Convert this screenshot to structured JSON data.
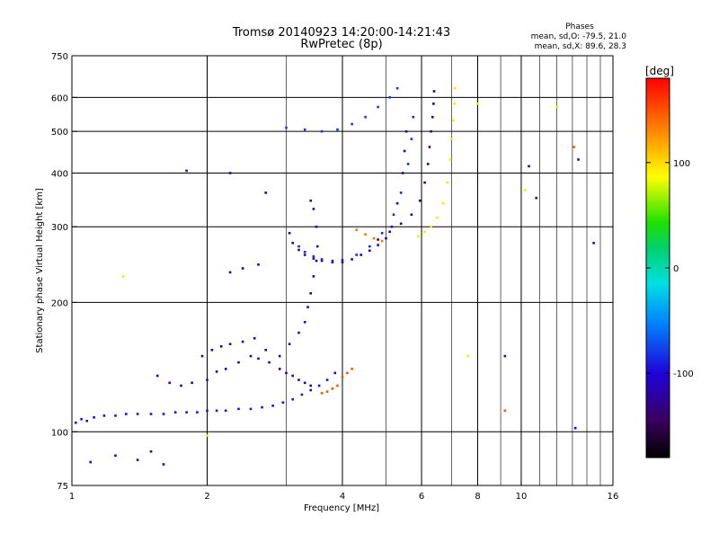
{
  "chart_data": {
    "type": "scatter",
    "title_line1": "Tromsø 20140923 14:20:00-14:21:43",
    "title_line2": "RwPretec (8p)",
    "stats_heading": "Phases",
    "stats_o": "mean, sd,O: -79.5, 21.0",
    "stats_x": "mean, sd,X:  89.6, 28.3",
    "xlabel": "Frequency [MHz]",
    "ylabel": "Stationary phase Virtual Height [km]",
    "x_scale": "log",
    "y_scale": "log",
    "xlim": [
      1,
      16
    ],
    "ylim": [
      75,
      750
    ],
    "x_ticks": [
      1,
      2,
      4,
      6,
      8,
      10,
      16
    ],
    "y_ticks": [
      75,
      100,
      200,
      300,
      400,
      500,
      600,
      750
    ],
    "grid": true,
    "colorbar": {
      "label": "[deg]",
      "range": [
        -180,
        180
      ],
      "ticks": [
        100,
        0,
        -100
      ]
    },
    "series": [
      {
        "phase": -95,
        "points": [
          [
            1.02,
            105
          ],
          [
            1.05,
            107
          ],
          [
            1.08,
            106
          ],
          [
            1.12,
            108
          ],
          [
            1.18,
            109
          ],
          [
            1.25,
            109
          ],
          [
            1.32,
            110
          ],
          [
            1.4,
            110
          ],
          [
            1.5,
            110
          ],
          [
            1.6,
            110
          ],
          [
            1.7,
            111
          ],
          [
            1.8,
            111
          ],
          [
            1.9,
            111
          ],
          [
            2.0,
            112
          ],
          [
            2.1,
            112
          ],
          [
            2.2,
            112
          ],
          [
            2.35,
            113
          ],
          [
            2.5,
            113
          ],
          [
            2.65,
            114
          ],
          [
            2.8,
            115
          ],
          [
            2.95,
            117
          ],
          [
            3.1,
            119
          ],
          [
            3.25,
            122
          ],
          [
            3.4,
            125
          ],
          [
            3.55,
            128
          ],
          [
            3.7,
            132
          ],
          [
            3.85,
            137
          ]
        ]
      },
      {
        "phase": -120,
        "points": [
          [
            1.55,
            135
          ],
          [
            1.65,
            130
          ],
          [
            1.75,
            128
          ],
          [
            1.85,
            130
          ],
          [
            2.0,
            132
          ],
          [
            2.1,
            138
          ],
          [
            2.2,
            140
          ],
          [
            2.35,
            145
          ],
          [
            2.5,
            150
          ],
          [
            2.6,
            148
          ],
          [
            2.75,
            145
          ],
          [
            2.9,
            140
          ],
          [
            3.0,
            137
          ],
          [
            3.1,
            135
          ],
          [
            3.2,
            132
          ],
          [
            3.3,
            130
          ],
          [
            3.4,
            128
          ]
        ]
      },
      {
        "phase": -110,
        "points": [
          [
            1.95,
            150
          ],
          [
            2.05,
            155
          ],
          [
            2.15,
            158
          ],
          [
            2.25,
            160
          ],
          [
            2.4,
            162
          ],
          [
            2.55,
            165
          ],
          [
            2.7,
            155
          ],
          [
            2.9,
            150
          ],
          [
            3.05,
            160
          ],
          [
            3.2,
            170
          ],
          [
            3.3,
            180
          ],
          [
            3.35,
            195
          ],
          [
            3.4,
            210
          ],
          [
            3.45,
            230
          ],
          [
            3.5,
            250
          ],
          [
            3.52,
            270
          ],
          [
            3.5,
            300
          ],
          [
            3.45,
            330
          ],
          [
            3.4,
            345
          ]
        ]
      },
      {
        "phase": -115,
        "points": [
          [
            3.05,
            290
          ],
          [
            3.1,
            275
          ],
          [
            3.2,
            265
          ],
          [
            3.3,
            258
          ],
          [
            3.45,
            253
          ],
          [
            3.6,
            250
          ],
          [
            3.8,
            248
          ],
          [
            4.0,
            248
          ],
          [
            4.2,
            252
          ],
          [
            4.4,
            258
          ],
          [
            4.6,
            264
          ],
          [
            4.8,
            272
          ],
          [
            5.0,
            282
          ],
          [
            5.15,
            300
          ],
          [
            5.3,
            340
          ],
          [
            5.45,
            400
          ],
          [
            5.5,
            450
          ],
          [
            5.55,
            500
          ]
        ]
      },
      {
        "phase": -85,
        "points": [
          [
            3.2,
            270
          ],
          [
            3.3,
            262
          ],
          [
            3.45,
            256
          ],
          [
            3.6,
            252
          ],
          [
            3.8,
            250
          ],
          [
            4.0,
            251
          ],
          [
            4.3,
            258
          ],
          [
            4.6,
            270
          ],
          [
            4.9,
            290
          ],
          [
            5.2,
            320
          ],
          [
            5.4,
            360
          ],
          [
            5.6,
            420
          ],
          [
            5.7,
            480
          ],
          [
            5.75,
            540
          ]
        ]
      },
      {
        "phase": -130,
        "points": [
          [
            4.8,
            280
          ],
          [
            5.1,
            292
          ],
          [
            5.4,
            305
          ],
          [
            5.7,
            320
          ],
          [
            5.95,
            345
          ],
          [
            6.1,
            380
          ],
          [
            6.2,
            420
          ],
          [
            6.25,
            460
          ],
          [
            6.3,
            500
          ],
          [
            6.35,
            540
          ],
          [
            6.38,
            580
          ],
          [
            6.4,
            620
          ]
        ]
      },
      {
        "phase": 95,
        "points": [
          [
            5.9,
            285
          ],
          [
            6.1,
            292
          ],
          [
            6.3,
            300
          ],
          [
            6.5,
            315
          ],
          [
            6.7,
            340
          ],
          [
            6.85,
            380
          ],
          [
            6.95,
            430
          ],
          [
            7.0,
            480
          ],
          [
            7.05,
            530
          ],
          [
            7.1,
            580
          ],
          [
            7.12,
            630
          ]
        ]
      },
      {
        "phase": 140,
        "points": [
          [
            4.3,
            295
          ],
          [
            4.5,
            288
          ],
          [
            4.7,
            282
          ],
          [
            4.9,
            278
          ]
        ]
      },
      {
        "phase": 150,
        "points": [
          [
            3.6,
            123
          ],
          [
            3.7,
            124
          ],
          [
            3.8,
            126
          ],
          [
            3.9,
            128
          ],
          [
            4.0,
            134
          ],
          [
            4.1,
            137
          ],
          [
            4.2,
            140
          ]
        ]
      },
      {
        "phase": -80,
        "points": [
          [
            3.0,
            510
          ],
          [
            3.3,
            505
          ],
          [
            3.6,
            500
          ],
          [
            3.9,
            505
          ],
          [
            4.2,
            520
          ],
          [
            4.5,
            540
          ],
          [
            4.8,
            570
          ],
          [
            5.1,
            600
          ],
          [
            5.3,
            630
          ]
        ]
      },
      {
        "phase": -110,
        "points": [
          [
            1.1,
            85
          ],
          [
            1.25,
            88
          ],
          [
            1.4,
            86
          ],
          [
            1.5,
            90
          ],
          [
            1.6,
            84
          ],
          [
            2.25,
            235
          ],
          [
            2.4,
            240
          ],
          [
            2.6,
            245
          ],
          [
            1.8,
            405
          ],
          [
            2.25,
            400
          ],
          [
            2.7,
            360
          ],
          [
            9.2,
            150
          ],
          [
            10.4,
            415
          ],
          [
            10.8,
            350
          ],
          [
            13.2,
            102
          ],
          [
            13.4,
            430
          ],
          [
            14.5,
            275
          ]
        ]
      },
      {
        "phase": 80,
        "points": [
          [
            1.3,
            230
          ],
          [
            2.0,
            98
          ],
          [
            7.6,
            150
          ],
          [
            8.0,
            580
          ],
          [
            10.2,
            365
          ],
          [
            12.0,
            570
          ]
        ]
      },
      {
        "phase": 150,
        "points": [
          [
            9.2,
            112
          ],
          [
            13.1,
            460
          ]
        ]
      }
    ]
  }
}
